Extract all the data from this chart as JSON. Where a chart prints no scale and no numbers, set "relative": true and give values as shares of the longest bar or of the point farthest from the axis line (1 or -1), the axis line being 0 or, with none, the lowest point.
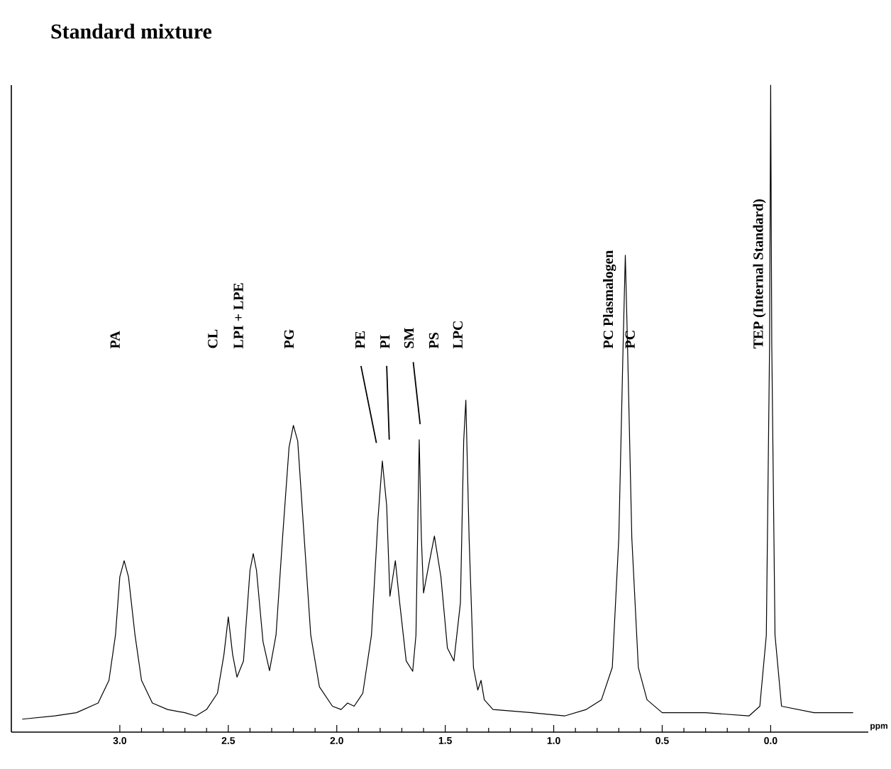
{
  "chart_data": {
    "type": "line",
    "title": "Standard mixture",
    "xlabel": "ppm",
    "relative": true,
    "color": "#000000",
    "marker": "none",
    "line_style": "solid",
    "grid": false,
    "tick_labels": "x",
    "xlim": [
      3.5,
      -0.45
    ],
    "xticks": [
      {
        "value": 3.0,
        "label": "3.0"
      },
      {
        "value": 2.5,
        "label": "2.5"
      },
      {
        "value": 2.0,
        "label": "2.0"
      },
      {
        "value": 1.5,
        "label": "1.5"
      },
      {
        "value": 1.0,
        "label": "1.0"
      },
      {
        "value": 0.5,
        "label": "0.5"
      },
      {
        "value": 0.0,
        "label": "0.0"
      }
    ],
    "x": [
      3.45,
      3.3,
      3.2,
      3.1,
      3.05,
      3.02,
      3.0,
      2.98,
      2.96,
      2.93,
      2.9,
      2.85,
      2.78,
      2.7,
      2.65,
      2.6,
      2.55,
      2.52,
      2.5,
      2.48,
      2.46,
      2.43,
      2.4,
      2.385,
      2.37,
      2.34,
      2.31,
      2.28,
      2.25,
      2.22,
      2.2,
      2.18,
      2.15,
      2.12,
      2.08,
      2.02,
      1.98,
      1.95,
      1.92,
      1.88,
      1.84,
      1.81,
      1.79,
      1.77,
      1.755,
      1.73,
      1.71,
      1.68,
      1.65,
      1.635,
      1.62,
      1.61,
      1.6,
      1.575,
      1.55,
      1.52,
      1.49,
      1.46,
      1.43,
      1.415,
      1.405,
      1.39,
      1.37,
      1.35,
      1.335,
      1.32,
      1.28,
      1.1,
      0.95,
      0.85,
      0.78,
      0.73,
      0.7,
      0.68,
      0.67,
      0.66,
      0.64,
      0.61,
      0.57,
      0.5,
      0.3,
      0.1,
      0.05,
      0.02,
      0.005,
      0.0,
      -0.005,
      -0.02,
      -0.05,
      -0.2,
      -0.38
    ],
    "values": [
      0.02,
      0.025,
      0.03,
      0.045,
      0.08,
      0.15,
      0.24,
      0.265,
      0.24,
      0.15,
      0.08,
      0.045,
      0.035,
      0.03,
      0.025,
      0.035,
      0.06,
      0.12,
      0.178,
      0.12,
      0.085,
      0.11,
      0.25,
      0.276,
      0.25,
      0.14,
      0.095,
      0.15,
      0.3,
      0.44,
      0.474,
      0.45,
      0.3,
      0.15,
      0.07,
      0.04,
      0.035,
      0.045,
      0.04,
      0.06,
      0.15,
      0.33,
      0.419,
      0.35,
      0.21,
      0.265,
      0.2,
      0.11,
      0.094,
      0.15,
      0.452,
      0.3,
      0.215,
      0.26,
      0.303,
      0.24,
      0.13,
      0.11,
      0.2,
      0.45,
      0.513,
      0.3,
      0.1,
      0.065,
      0.08,
      0.05,
      0.035,
      0.03,
      0.025,
      0.035,
      0.05,
      0.1,
      0.3,
      0.6,
      0.737,
      0.6,
      0.3,
      0.1,
      0.05,
      0.03,
      0.03,
      0.025,
      0.04,
      0.15,
      0.6,
      1.0,
      0.6,
      0.15,
      0.04,
      0.03,
      0.03
    ],
    "annotations": [
      "PA",
      "CL",
      "LPI + LPE",
      "PG",
      "PE",
      "PI",
      "SM",
      "PS",
      "LPC",
      "PC Plasmalogen",
      "PC",
      "TEP (Internal Standard)"
    ]
  }
}
